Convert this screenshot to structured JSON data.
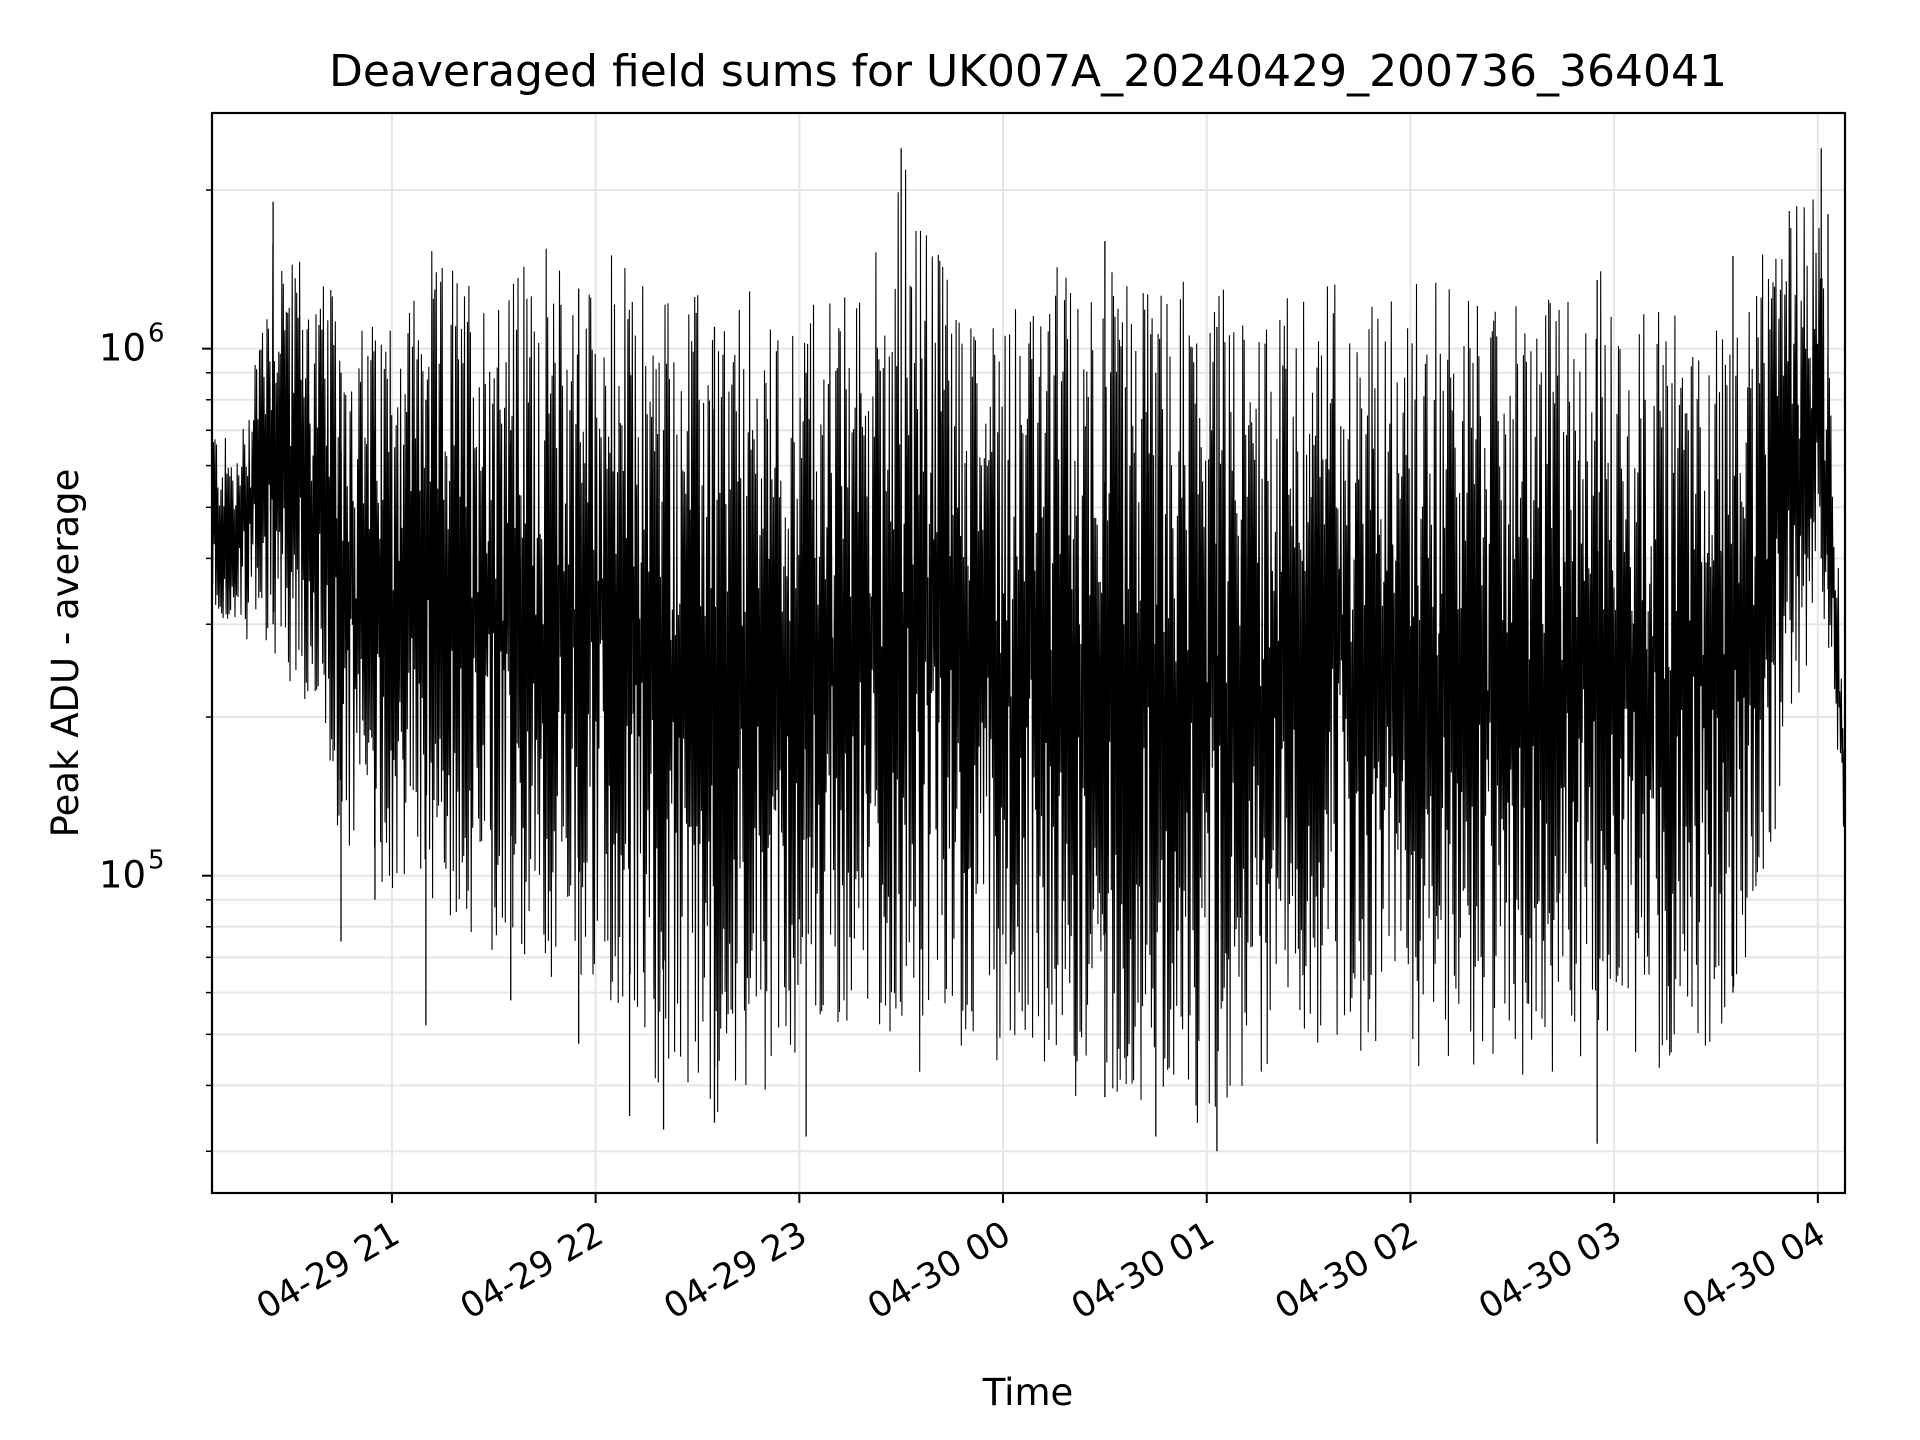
{
  "chart_data": {
    "type": "line",
    "title": "Deaveraged field sums for UK007A_20240429_200736_364041",
    "xlabel": "Time",
    "ylabel": "Peak ADU - average",
    "y_scale": "log",
    "xlim": [
      "2024-04-29 20:07",
      "2024-04-30 04:08"
    ],
    "ylim": [
      25000,
      2800000
    ],
    "grid": true,
    "line_color": "#000000",
    "x_ticks": [
      {
        "t": "2024-04-29 21:00",
        "label": "04-29 21"
      },
      {
        "t": "2024-04-29 22:00",
        "label": "04-29 22"
      },
      {
        "t": "2024-04-29 23:00",
        "label": "04-29 23"
      },
      {
        "t": "2024-04-30 00:00",
        "label": "04-30 00"
      },
      {
        "t": "2024-04-30 01:00",
        "label": "04-30 01"
      },
      {
        "t": "2024-04-30 02:00",
        "label": "04-30 02"
      },
      {
        "t": "2024-04-30 03:00",
        "label": "04-30 03"
      },
      {
        "t": "2024-04-30 04:00",
        "label": "04-30 04"
      }
    ],
    "y_ticks": [
      {
        "value": 100000,
        "base": "10",
        "exp": "5"
      },
      {
        "value": 1000000,
        "base": "10",
        "exp": "6"
      }
    ],
    "envelope_points": [
      {
        "t": "2024-04-29 20:07",
        "high": 750000,
        "low": 300000
      },
      {
        "t": "2024-04-29 20:15",
        "high": 650000,
        "low": 280000
      },
      {
        "t": "2024-04-29 20:25",
        "high": 1900000,
        "low": 250000
      },
      {
        "t": "2024-04-29 20:35",
        "high": 1500000,
        "low": 180000
      },
      {
        "t": "2024-04-29 20:50",
        "high": 1150000,
        "low": 90000
      },
      {
        "t": "2024-04-29 21:10",
        "high": 1500000,
        "low": 90000
      },
      {
        "t": "2024-04-29 21:30",
        "high": 1550000,
        "low": 65000
      },
      {
        "t": "2024-04-29 21:50",
        "high": 1550000,
        "low": 60000
      },
      {
        "t": "2024-04-29 22:10",
        "high": 1500000,
        "low": 50000
      },
      {
        "t": "2024-04-29 22:20",
        "high": 1400000,
        "low": 34000
      },
      {
        "t": "2024-04-29 22:40",
        "high": 1300000,
        "low": 36000
      },
      {
        "t": "2024-04-29 23:00",
        "high": 1300000,
        "low": 45000
      },
      {
        "t": "2024-04-29 23:20",
        "high": 1400000,
        "low": 45000
      },
      {
        "t": "2024-04-29 23:30",
        "high": 2400000,
        "low": 40000
      },
      {
        "t": "2024-04-29 23:50",
        "high": 1400000,
        "low": 42000
      },
      {
        "t": "2024-04-30 00:10",
        "high": 1400000,
        "low": 40000
      },
      {
        "t": "2024-04-30 00:30",
        "high": 1600000,
        "low": 38000
      },
      {
        "t": "2024-04-30 00:50",
        "high": 1400000,
        "low": 32000
      },
      {
        "t": "2024-04-30 01:10",
        "high": 1300000,
        "low": 40000
      },
      {
        "t": "2024-04-30 01:30",
        "high": 1400000,
        "low": 45000
      },
      {
        "t": "2024-04-30 01:50",
        "high": 1400000,
        "low": 45000
      },
      {
        "t": "2024-04-30 02:10",
        "high": 1400000,
        "low": 42000
      },
      {
        "t": "2024-04-30 02:30",
        "high": 1300000,
        "low": 40000
      },
      {
        "t": "2024-04-30 02:50",
        "high": 1450000,
        "low": 40000
      },
      {
        "t": "2024-04-30 03:10",
        "high": 1300000,
        "low": 42000
      },
      {
        "t": "2024-04-30 03:30",
        "high": 1250000,
        "low": 45000
      },
      {
        "t": "2024-04-30 03:45",
        "high": 1500000,
        "low": 90000
      },
      {
        "t": "2024-04-30 04:00",
        "high": 2400000,
        "low": 300000
      },
      {
        "t": "2024-04-30 04:04",
        "high": 800000,
        "low": 250000
      },
      {
        "t": "2024-04-30 04:08",
        "high": 200000,
        "low": 90000
      }
    ],
    "spikes": [
      {
        "t": "2024-04-29 20:25",
        "high": 1900000,
        "low": 300000
      },
      {
        "t": "2024-04-29 20:45",
        "high": 900000,
        "low": 75000
      },
      {
        "t": "2024-04-29 20:55",
        "high": 700000,
        "low": 90000
      },
      {
        "t": "2024-04-29 21:10",
        "high": 800000,
        "low": 52000
      },
      {
        "t": "2024-04-29 21:35",
        "high": 700000,
        "low": 58000
      },
      {
        "t": "2024-04-29 21:55",
        "high": 1300000,
        "low": 48000
      },
      {
        "t": "2024-04-29 22:10",
        "high": 900000,
        "low": 35000
      },
      {
        "t": "2024-04-29 22:20",
        "high": 700000,
        "low": 33000
      },
      {
        "t": "2024-04-29 22:35",
        "high": 1100000,
        "low": 34000
      },
      {
        "t": "2024-04-29 23:02",
        "high": 900000,
        "low": 32000
      },
      {
        "t": "2024-04-29 23:30",
        "high": 2400000,
        "low": 100000
      },
      {
        "t": "2024-04-30 00:30",
        "high": 1600000,
        "low": 38000
      },
      {
        "t": "2024-04-30 00:45",
        "high": 900000,
        "low": 32000
      },
      {
        "t": "2024-04-30 01:03",
        "high": 1100000,
        "low": 30000
      },
      {
        "t": "2024-04-30 02:55",
        "high": 1350000,
        "low": 31000
      },
      {
        "t": "2024-04-30 03:35",
        "high": 1500000,
        "low": 60000
      },
      {
        "t": "2024-04-30 04:01",
        "high": 2400000,
        "low": 400000
      },
      {
        "t": "2024-04-30 04:03",
        "high": 1800000,
        "low": 350000
      }
    ]
  }
}
